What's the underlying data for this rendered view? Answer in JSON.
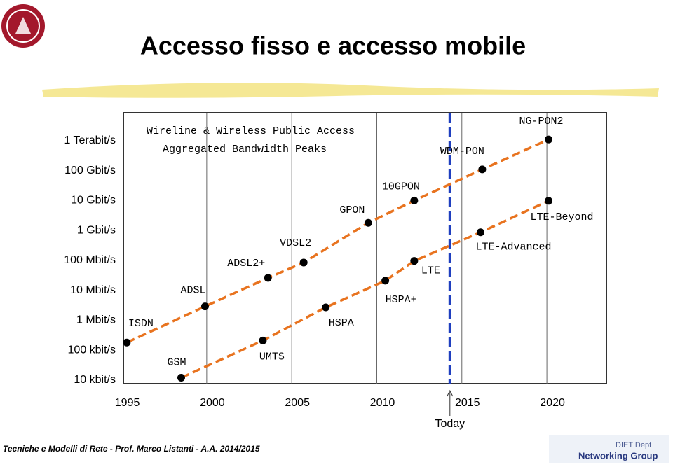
{
  "slide_title": "Accesso fisso e accesso mobile",
  "footer": "Tecniche e Modelli di Rete - Prof. Marco Listanti - A.A. 2014/2015",
  "logos": [
    "DIET Dept",
    "Networking Group"
  ],
  "chart_data": {
    "type": "line",
    "title": "Wireline & Wireless Public Access",
    "subtitle": "Aggregated Bandwidth Peaks",
    "log_y": true,
    "xlim": [
      1995.1,
      2023.5
    ],
    "xticks": [
      1995,
      2000,
      2005,
      2010,
      2015,
      2020
    ],
    "ylim": [
      7600,
      8600000000000
    ],
    "yticks": [
      {
        "value": 10000,
        "label": "10 kbit/s"
      },
      {
        "value": 100000,
        "label": "100 kbit/s"
      },
      {
        "value": 1000000,
        "label": "1 Mbit/s"
      },
      {
        "value": 10000000,
        "label": "10 Mbit/s"
      },
      {
        "value": 100000000,
        "label": "100 Mbit/s"
      },
      {
        "value": 1000000000,
        "label": "1 Gbit/s"
      },
      {
        "value": 10000000000,
        "label": "10 Gbit/s"
      },
      {
        "value": 100000000000,
        "label": "100 Gbit/s"
      },
      {
        "value": 1000000000000,
        "label": "1 Terabit/s"
      }
    ],
    "series": [
      {
        "color": "#e8731f",
        "x": [
          1995.3,
          1999.9,
          2003.6,
          2005.7,
          2009.5,
          2012.2,
          2016.2,
          2020.1
        ],
        "values": [
          180000,
          2900000,
          26000000,
          85000000,
          1800000000,
          10000000000,
          110000000000,
          1100000000000
        ],
        "labels": [
          "ISDN",
          "ADSL",
          "ADSL2+",
          "VDSL2",
          "GPON",
          "10GPON",
          "WDM-PON",
          "NG-PON2"
        ]
      },
      {
        "color": "#e8731f",
        "x": [
          1998.5,
          2003.3,
          2007.0,
          2010.5,
          2012.2,
          2016.1,
          2020.1
        ],
        "values": [
          12000,
          210000,
          2700000,
          21000000,
          96000000,
          870000000,
          9800000000
        ],
        "labels": [
          "GSM",
          "UMTS",
          "HSPA",
          "HSPA+",
          "LTE",
          "LTE-Advanced",
          "LTE-Beyond"
        ]
      }
    ],
    "today": {
      "x": 2014.3,
      "label": "Today",
      "color": "#1f3fbf"
    }
  }
}
